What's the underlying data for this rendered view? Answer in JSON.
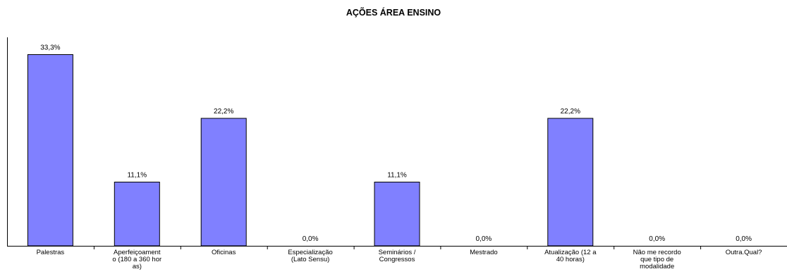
{
  "chart_data": {
    "type": "bar",
    "title": "AÇÕES ÁREA ENSINO",
    "categories": [
      "Palestras",
      "Aperfeiçoament o (180 a 360 hor as)",
      "Oficinas",
      "Especialização (Lato Sensu)",
      "Seminários / Congressos",
      "Mestrado",
      "Atualização (12 a 40 horas)",
      "Não me recordo que tipo de modalidade",
      "Outra.Qual?"
    ],
    "category_lines": [
      [
        "Palestras"
      ],
      [
        "Aperfeiçoament",
        "o (180 a 360 hor",
        "as)"
      ],
      [
        "Oficinas"
      ],
      [
        "Especialização",
        "(Lato Sensu)"
      ],
      [
        "Seminários /",
        "Congressos"
      ],
      [
        "Mestrado"
      ],
      [
        "Atualização (12 a",
        "40 horas)"
      ],
      [
        "Não me recordo",
        "que tipo de",
        "modalidade"
      ],
      [
        "Outra.Qual?"
      ]
    ],
    "values": [
      33.3,
      11.1,
      22.2,
      0.0,
      11.1,
      0.0,
      22.2,
      0.0,
      0.0
    ],
    "value_labels": [
      "33,3%",
      "11,1%",
      "22,2%",
      "0,0%",
      "11,1%",
      "0,0%",
      "22,2%",
      "0,0%",
      "0,0%"
    ],
    "ylim": [
      0,
      36.3
    ],
    "bar_color": "#8080ff",
    "xlabel": "",
    "ylabel": ""
  }
}
